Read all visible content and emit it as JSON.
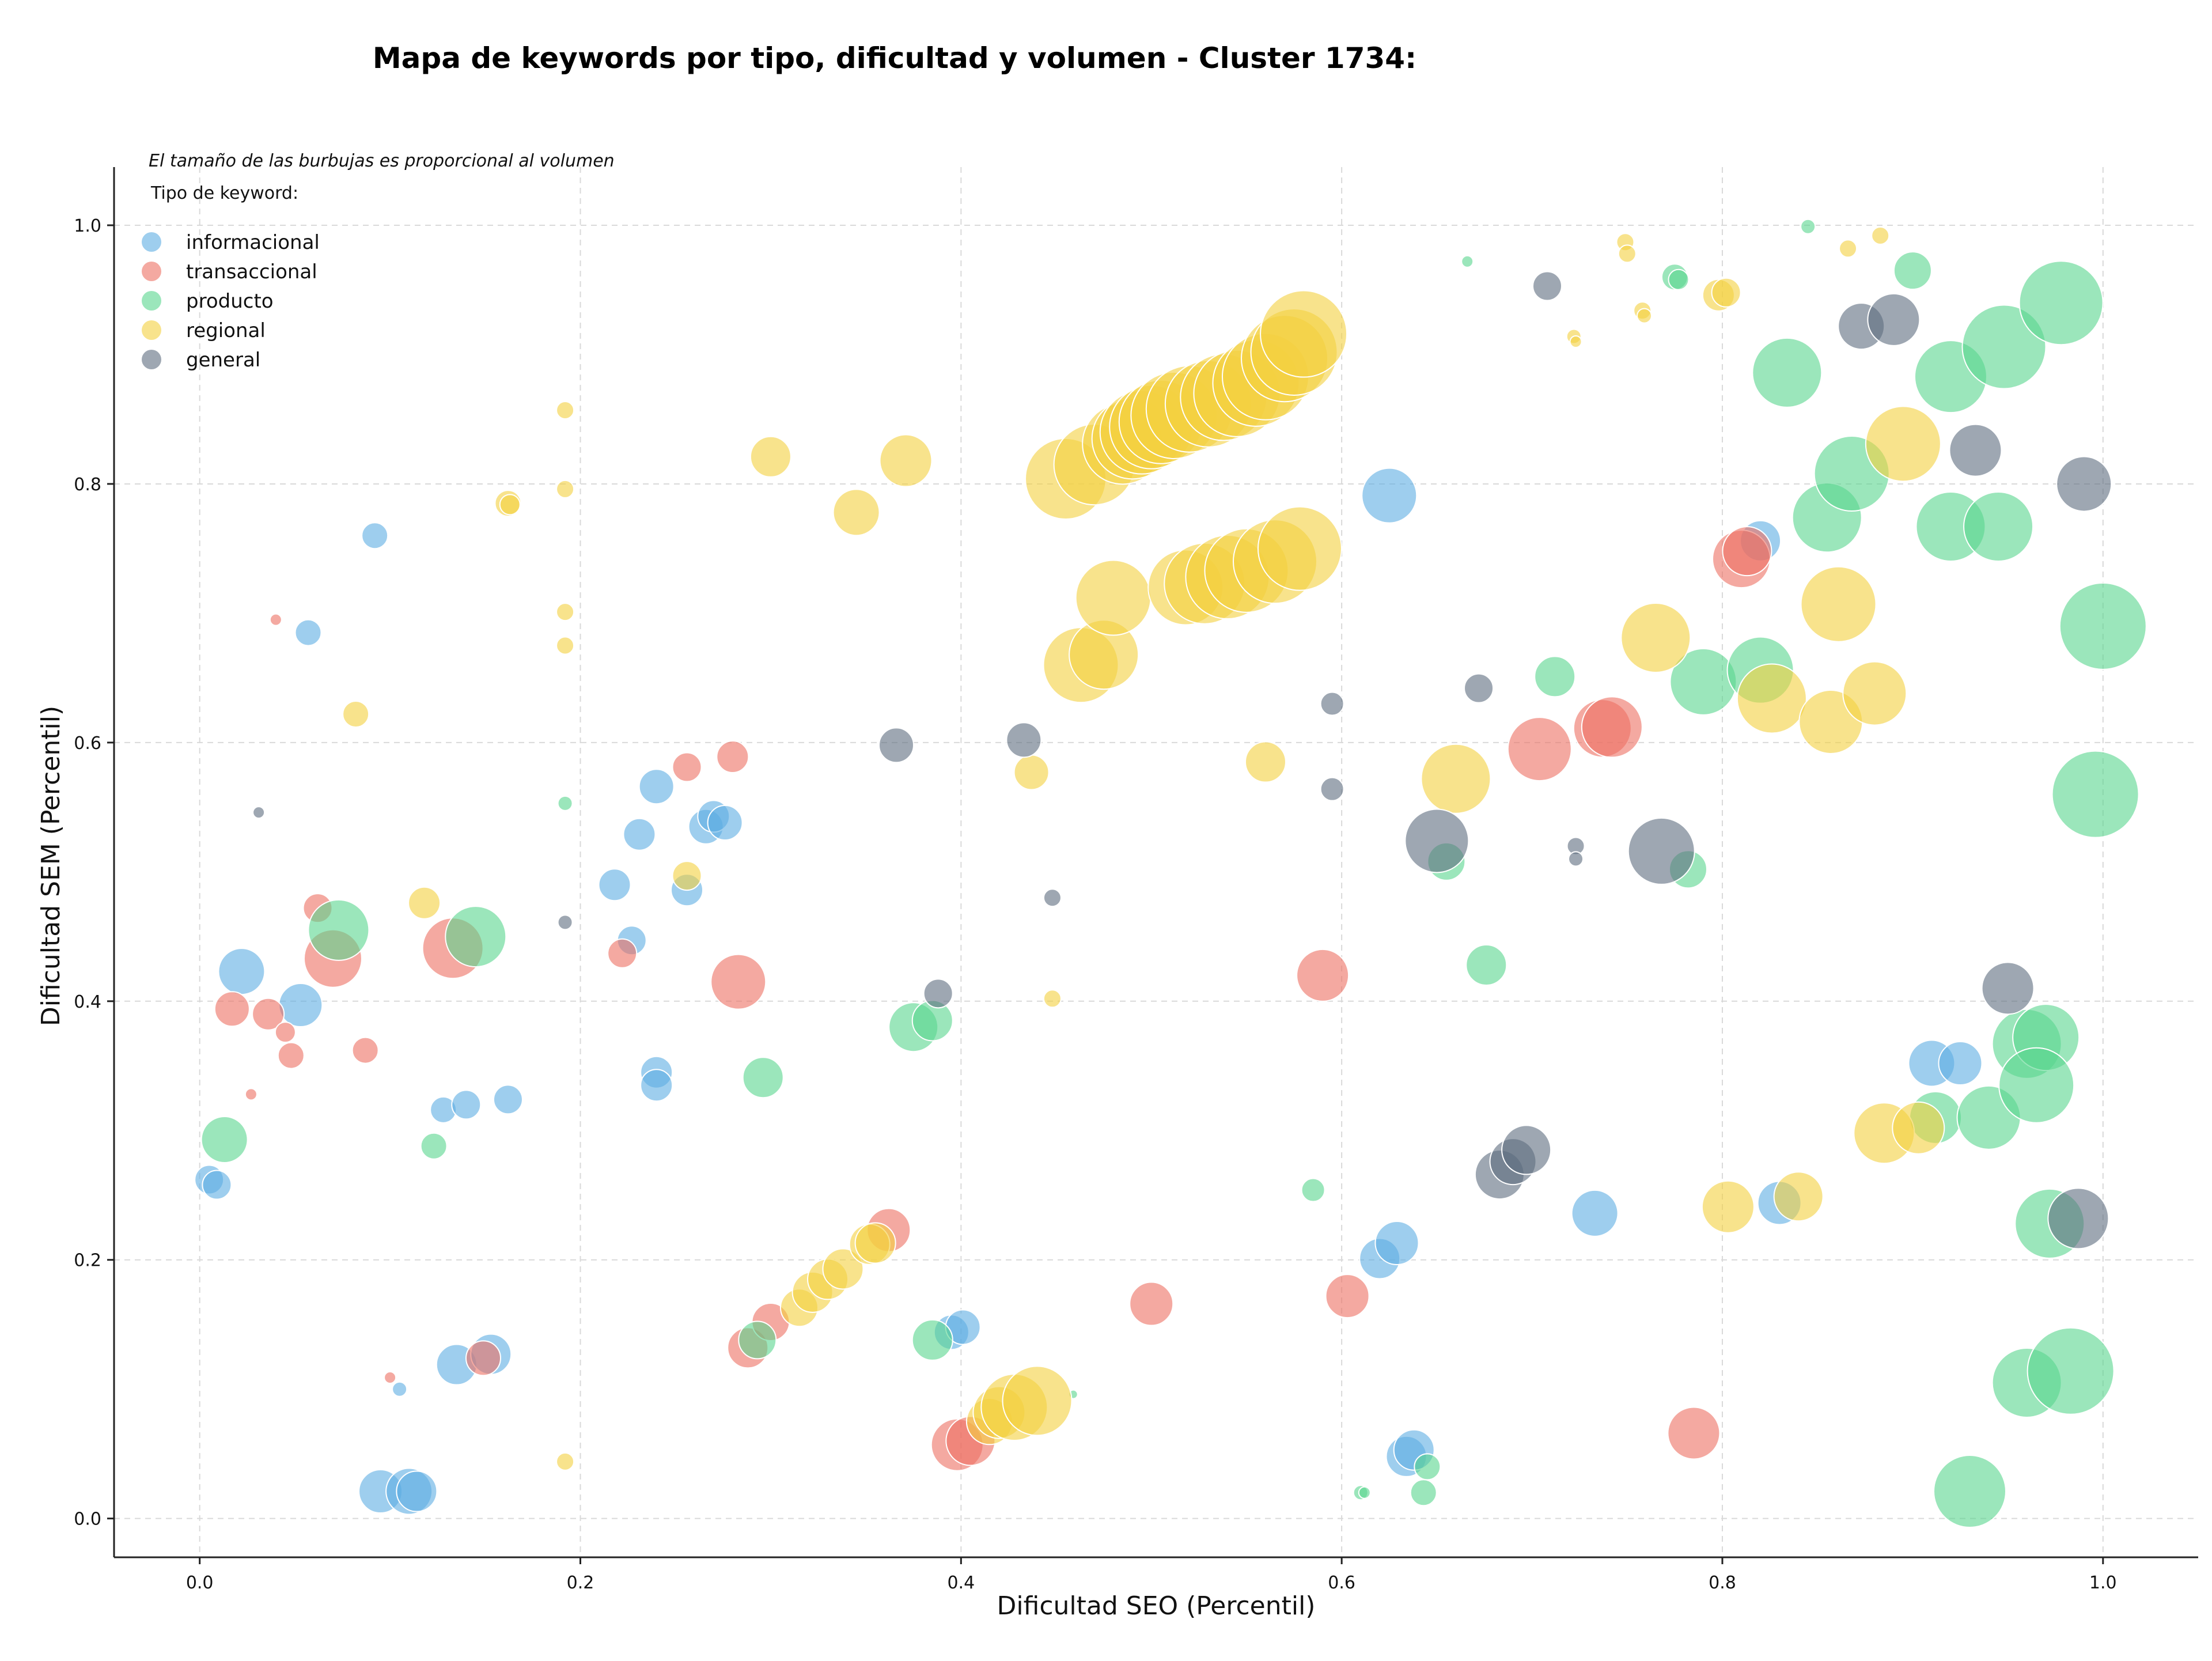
{
  "chart_data": {
    "type": "scatter",
    "title": "Mapa de keywords por tipo, dificultad y volumen - Cluster 1734:",
    "xlabel": "Dificultad SEO (Percentil)",
    "ylabel": "Dificultad SEM (Percentil)",
    "xlim": [
      -0.045,
      1.05
    ],
    "ylim": [
      -0.03,
      1.045
    ],
    "xticks": [
      0.0,
      0.2,
      0.4,
      0.6,
      0.8,
      1.0
    ],
    "yticks": [
      0.0,
      0.2,
      0.4,
      0.6,
      0.8,
      1.0
    ],
    "xtick_labels": [
      "0.0",
      "0.2",
      "0.4",
      "0.6",
      "0.8",
      "1.0"
    ],
    "ytick_labels": [
      "0.0",
      "0.2",
      "0.4",
      "0.6",
      "0.8",
      "1.0"
    ],
    "grid": true,
    "size_note": "El tamaño de las burbujas es proporcional al volumen",
    "legend_title": "Tipo de keyword:",
    "legend_position": "top-left",
    "series": [
      {
        "name": "informacional",
        "color": "#5dade2",
        "points": [
          [
            0.005,
            0.262,
            1.0
          ],
          [
            0.009,
            0.258,
            1.0
          ],
          [
            0.022,
            0.423,
            1.6
          ],
          [
            0.053,
            0.397,
            1.5
          ],
          [
            0.057,
            0.685,
            0.9
          ],
          [
            0.092,
            0.76,
            0.9
          ],
          [
            0.095,
            0.021,
            1.5
          ],
          [
            0.105,
            0.1,
            0.5
          ],
          [
            0.11,
            0.021,
            1.6
          ],
          [
            0.114,
            0.021,
            1.4
          ],
          [
            0.128,
            0.316,
            0.9
          ],
          [
            0.135,
            0.119,
            1.4
          ],
          [
            0.14,
            0.32,
            1.0
          ],
          [
            0.153,
            0.127,
            1.4
          ],
          [
            0.162,
            0.324,
            1.0
          ],
          [
            0.218,
            0.49,
            1.1
          ],
          [
            0.227,
            0.447,
            1.0
          ],
          [
            0.231,
            0.529,
            1.1
          ],
          [
            0.24,
            0.566,
            1.2
          ],
          [
            0.24,
            0.345,
            1.1
          ],
          [
            0.24,
            0.335,
            1.1
          ],
          [
            0.256,
            0.486,
            1.1
          ],
          [
            0.266,
            0.535,
            1.2
          ],
          [
            0.27,
            0.543,
            1.1
          ],
          [
            0.276,
            0.538,
            1.2
          ],
          [
            0.395,
            0.144,
            1.2
          ],
          [
            0.401,
            0.148,
            1.2
          ],
          [
            0.625,
            0.791,
            1.9
          ],
          [
            0.62,
            0.201,
            1.4
          ],
          [
            0.629,
            0.213,
            1.5
          ],
          [
            0.634,
            0.048,
            1.4
          ],
          [
            0.638,
            0.053,
            1.4
          ],
          [
            0.733,
            0.236,
            1.6
          ],
          [
            0.82,
            0.756,
            1.4
          ],
          [
            0.83,
            0.244,
            1.5
          ],
          [
            0.91,
            0.352,
            1.6
          ],
          [
            0.925,
            0.352,
            1.5
          ]
        ]
      },
      {
        "name": "transaccional",
        "color": "#ec7063",
        "points": [
          [
            0.017,
            0.394,
            1.2
          ],
          [
            0.027,
            0.328,
            0.4
          ],
          [
            0.036,
            0.39,
            1.1
          ],
          [
            0.04,
            0.695,
            0.4
          ],
          [
            0.045,
            0.376,
            0.7
          ],
          [
            0.048,
            0.358,
            0.9
          ],
          [
            0.062,
            0.472,
            1.0
          ],
          [
            0.07,
            0.433,
            2.0
          ],
          [
            0.087,
            0.362,
            0.9
          ],
          [
            0.1,
            0.109,
            0.4
          ],
          [
            0.133,
            0.441,
            2.1
          ],
          [
            0.149,
            0.124,
            1.2
          ],
          [
            0.222,
            0.437,
            1.0
          ],
          [
            0.256,
            0.581,
            1.0
          ],
          [
            0.28,
            0.589,
            1.1
          ],
          [
            0.283,
            0.415,
            1.9
          ],
          [
            0.288,
            0.132,
            1.4
          ],
          [
            0.3,
            0.152,
            1.3
          ],
          [
            0.362,
            0.223,
            1.5
          ],
          [
            0.398,
            0.057,
            1.8
          ],
          [
            0.405,
            0.06,
            1.7
          ],
          [
            0.5,
            0.166,
            1.5
          ],
          [
            0.59,
            0.42,
            1.8
          ],
          [
            0.603,
            0.172,
            1.5
          ],
          [
            0.704,
            0.595,
            2.2
          ],
          [
            0.737,
            0.611,
            2.0
          ],
          [
            0.742,
            0.612,
            2.1
          ],
          [
            0.785,
            0.066,
            1.8
          ],
          [
            0.81,
            0.742,
            2.0
          ],
          [
            0.813,
            0.748,
            1.7
          ]
        ]
      },
      {
        "name": "producto",
        "color": "#58d68d",
        "points": [
          [
            0.013,
            0.293,
            1.6
          ],
          [
            0.073,
            0.455,
            2.1
          ],
          [
            0.123,
            0.288,
            0.9
          ],
          [
            0.145,
            0.45,
            2.1
          ],
          [
            0.192,
            0.553,
            0.5
          ],
          [
            0.293,
            0.138,
            1.3
          ],
          [
            0.296,
            0.341,
            1.4
          ],
          [
            0.375,
            0.38,
            1.7
          ],
          [
            0.385,
            0.385,
            1.4
          ],
          [
            0.385,
            0.138,
            1.4
          ],
          [
            0.459,
            0.096,
            0.3
          ],
          [
            0.585,
            0.254,
            0.8
          ],
          [
            0.61,
            0.02,
            0.5
          ],
          [
            0.612,
            0.02,
            0.4
          ],
          [
            0.643,
            0.02,
            0.9
          ],
          [
            0.645,
            0.04,
            0.9
          ],
          [
            0.655,
            0.508,
            1.3
          ],
          [
            0.666,
            0.972,
            0.4
          ],
          [
            0.676,
            0.428,
            1.4
          ],
          [
            0.712,
            0.651,
            1.4
          ],
          [
            0.775,
            0.96,
            0.9
          ],
          [
            0.777,
            0.958,
            0.7
          ],
          [
            0.782,
            0.502,
            1.3
          ],
          [
            0.79,
            0.647,
            2.3
          ],
          [
            0.82,
            0.656,
            2.3
          ],
          [
            0.845,
            0.999,
            0.5
          ],
          [
            0.834,
            0.886,
            2.4
          ],
          [
            0.855,
            0.774,
            2.4
          ],
          [
            0.868,
            0.808,
            2.6
          ],
          [
            0.9,
            0.965,
            1.3
          ],
          [
            0.92,
            0.767,
            2.4
          ],
          [
            0.92,
            0.883,
            2.5
          ],
          [
            0.945,
            0.767,
            2.4
          ],
          [
            0.948,
            0.906,
            2.9
          ],
          [
            0.978,
            0.94,
            2.9
          ],
          [
            1.0,
            0.69,
            3.0
          ],
          [
            0.996,
            0.56,
            3.0
          ],
          [
            0.912,
            0.31,
            1.8
          ],
          [
            0.94,
            0.31,
            2.2
          ],
          [
            0.96,
            0.367,
            2.4
          ],
          [
            0.97,
            0.372,
            2.3
          ],
          [
            0.965,
            0.335,
            2.6
          ],
          [
            0.972,
            0.228,
            2.4
          ],
          [
            0.96,
            0.105,
            2.4
          ],
          [
            0.983,
            0.114,
            3.0
          ],
          [
            0.93,
            0.021,
            2.5
          ]
        ]
      },
      {
        "name": "regional",
        "color": "#f4d03f",
        "points": [
          [
            0.082,
            0.622,
            0.9
          ],
          [
            0.118,
            0.476,
            1.1
          ],
          [
            0.162,
            0.785,
            0.9
          ],
          [
            0.163,
            0.784,
            0.7
          ],
          [
            0.192,
            0.857,
            0.6
          ],
          [
            0.192,
            0.796,
            0.6
          ],
          [
            0.192,
            0.701,
            0.6
          ],
          [
            0.192,
            0.675,
            0.6
          ],
          [
            0.192,
            0.044,
            0.6
          ],
          [
            0.256,
            0.497,
            1.0
          ],
          [
            0.3,
            0.821,
            1.4
          ],
          [
            0.315,
            0.163,
            1.3
          ],
          [
            0.322,
            0.175,
            1.4
          ],
          [
            0.33,
            0.185,
            1.4
          ],
          [
            0.338,
            0.193,
            1.4
          ],
          [
            0.345,
            0.778,
            1.6
          ],
          [
            0.352,
            0.212,
            1.4
          ],
          [
            0.355,
            0.213,
            1.4
          ],
          [
            0.371,
            0.818,
            1.8
          ],
          [
            0.415,
            0.075,
            1.6
          ],
          [
            0.42,
            0.082,
            1.8
          ],
          [
            0.428,
            0.086,
            2.3
          ],
          [
            0.44,
            0.091,
            2.4
          ],
          [
            0.437,
            0.577,
            1.2
          ],
          [
            0.448,
            0.402,
            0.6
          ],
          [
            0.455,
            0.804,
            2.8
          ],
          [
            0.463,
            0.66,
            2.6
          ],
          [
            0.47,
            0.815,
            2.8
          ],
          [
            0.475,
            0.668,
            2.4
          ],
          [
            0.48,
            0.712,
            2.6
          ],
          [
            0.485,
            0.831,
            2.8
          ],
          [
            0.49,
            0.835,
            2.8
          ],
          [
            0.495,
            0.84,
            2.9
          ],
          [
            0.5,
            0.844,
            2.9
          ],
          [
            0.505,
            0.848,
            2.9
          ],
          [
            0.512,
            0.853,
            3.0
          ],
          [
            0.518,
            0.72,
            2.6
          ],
          [
            0.52,
            0.858,
            3.0
          ],
          [
            0.528,
            0.723,
            2.8
          ],
          [
            0.53,
            0.862,
            3.0
          ],
          [
            0.538,
            0.867,
            3.0
          ],
          [
            0.54,
            0.728,
            2.9
          ],
          [
            0.545,
            0.87,
            3.0
          ],
          [
            0.55,
            0.733,
            2.9
          ],
          [
            0.555,
            0.878,
            3.0
          ],
          [
            0.56,
            0.883,
            3.0
          ],
          [
            0.56,
            0.585,
            1.4
          ],
          [
            0.565,
            0.74,
            2.9
          ],
          [
            0.57,
            0.897,
            3.0
          ],
          [
            0.575,
            0.902,
            3.0
          ],
          [
            0.578,
            0.75,
            2.9
          ],
          [
            0.58,
            0.916,
            3.0
          ],
          [
            0.66,
            0.572,
            2.4
          ],
          [
            0.722,
            0.914,
            0.5
          ],
          [
            0.723,
            0.91,
            0.4
          ],
          [
            0.749,
            0.987,
            0.6
          ],
          [
            0.75,
            0.978,
            0.6
          ],
          [
            0.758,
            0.934,
            0.6
          ],
          [
            0.759,
            0.93,
            0.5
          ],
          [
            0.765,
            0.681,
            2.4
          ],
          [
            0.798,
            0.946,
            1.1
          ],
          [
            0.802,
            0.948,
            1.0
          ],
          [
            0.803,
            0.241,
            1.8
          ],
          [
            0.826,
            0.634,
            2.4
          ],
          [
            0.84,
            0.249,
            1.7
          ],
          [
            0.857,
            0.616,
            2.2
          ],
          [
            0.861,
            0.707,
            2.6
          ],
          [
            0.866,
            0.982,
            0.6
          ],
          [
            0.88,
            0.638,
            2.2
          ],
          [
            0.883,
            0.992,
            0.6
          ],
          [
            0.885,
            0.298,
            2.1
          ],
          [
            0.895,
            0.831,
            2.6
          ],
          [
            0.903,
            0.302,
            1.8
          ]
        ]
      },
      {
        "name": "general",
        "color": "#5d6d7e",
        "points": [
          [
            0.031,
            0.546,
            0.4
          ],
          [
            0.192,
            0.461,
            0.5
          ],
          [
            0.366,
            0.598,
            1.2
          ],
          [
            0.388,
            0.406,
            1.0
          ],
          [
            0.433,
            0.602,
            1.2
          ],
          [
            0.448,
            0.48,
            0.6
          ],
          [
            0.595,
            0.63,
            0.8
          ],
          [
            0.595,
            0.564,
            0.8
          ],
          [
            0.65,
            0.524,
            2.2
          ],
          [
            0.672,
            0.642,
            1.0
          ],
          [
            0.683,
            0.266,
            1.7
          ],
          [
            0.69,
            0.276,
            1.6
          ],
          [
            0.697,
            0.285,
            1.7
          ],
          [
            0.708,
            0.953,
            1.0
          ],
          [
            0.723,
            0.52,
            0.6
          ],
          [
            0.723,
            0.51,
            0.5
          ],
          [
            0.768,
            0.516,
            2.3
          ],
          [
            0.873,
            0.922,
            1.6
          ],
          [
            0.89,
            0.927,
            1.8
          ],
          [
            0.933,
            0.826,
            1.8
          ],
          [
            0.95,
            0.41,
            1.8
          ],
          [
            0.987,
            0.232,
            2.1
          ],
          [
            0.99,
            0.8,
            1.9
          ]
        ]
      }
    ]
  }
}
